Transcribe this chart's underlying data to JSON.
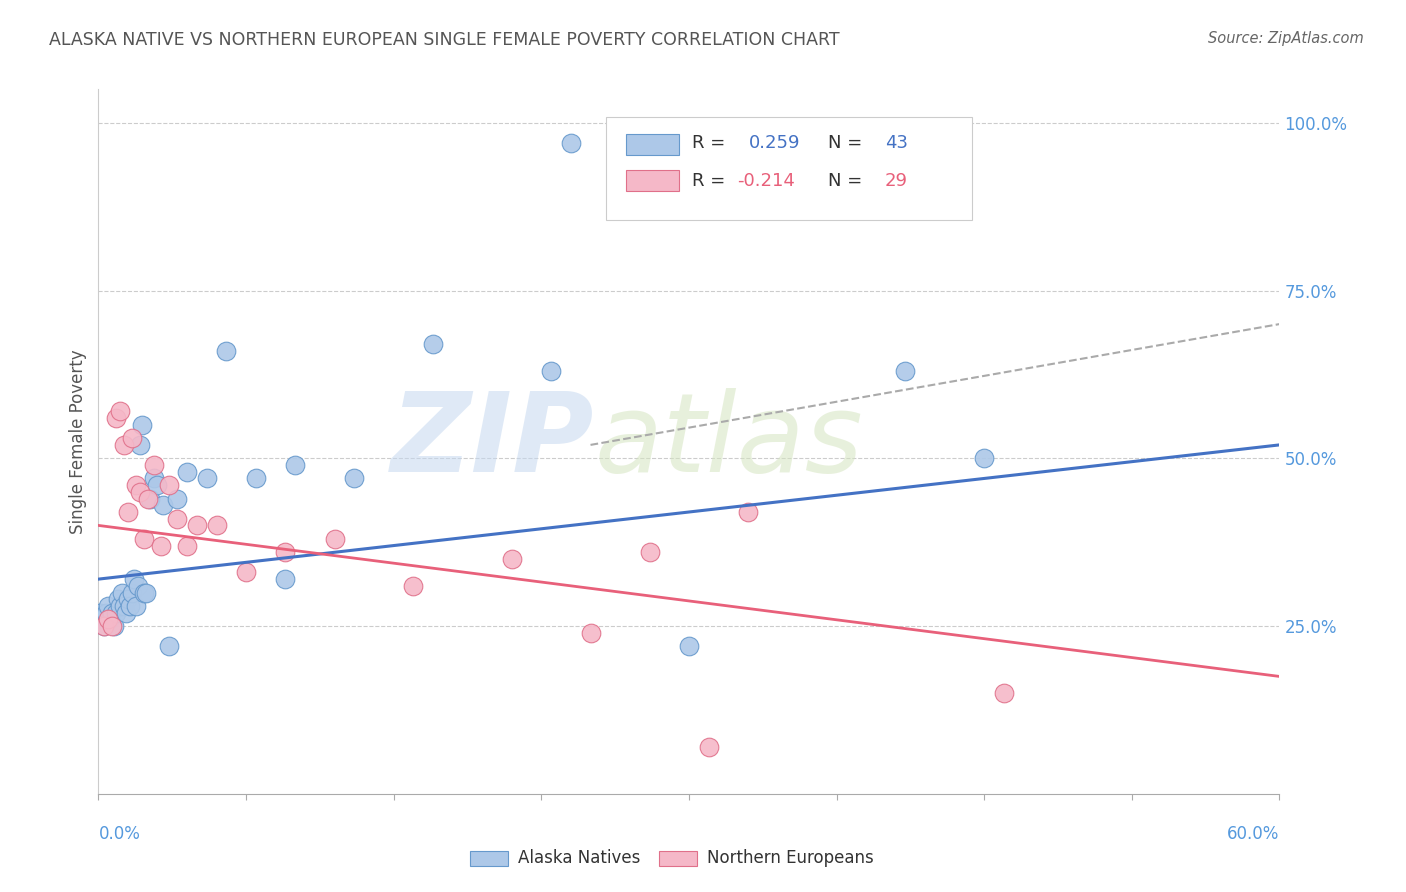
{
  "title": "ALASKA NATIVE VS NORTHERN EUROPEAN SINGLE FEMALE POVERTY CORRELATION CHART",
  "source": "Source: ZipAtlas.com",
  "ylabel": "Single Female Poverty",
  "watermark_zip": "ZIP",
  "watermark_atlas": "atlas",
  "legend_blue_text": "R =  0.259   N = 43",
  "legend_pink_text": "R = -0.214   N = 29",
  "legend_label1": "Alaska Natives",
  "legend_label2": "Northern Europeans",
  "blue_scatter_color": "#adc8e8",
  "blue_edge_color": "#6699cc",
  "pink_scatter_color": "#f5b8c8",
  "pink_edge_color": "#e0708a",
  "blue_line_color": "#4472c4",
  "pink_line_color": "#e8607a",
  "dashed_line_color": "#aaaaaa",
  "right_tick_color": "#5599dd",
  "title_color": "#555555",
  "source_color": "#666666",
  "xmin": 0.0,
  "xmax": 0.6,
  "ymin": 0.0,
  "ymax": 1.05,
  "blue_x": [
    0.001,
    0.002,
    0.003,
    0.004,
    0.005,
    0.006,
    0.007,
    0.008,
    0.009,
    0.01,
    0.011,
    0.012,
    0.013,
    0.014,
    0.015,
    0.016,
    0.017,
    0.018,
    0.019,
    0.02,
    0.021,
    0.022,
    0.023,
    0.024,
    0.026,
    0.028,
    0.03,
    0.033,
    0.036,
    0.04,
    0.045,
    0.055,
    0.065,
    0.08,
    0.1,
    0.13,
    0.17,
    0.24,
    0.3,
    0.41,
    0.45,
    0.23,
    0.095
  ],
  "blue_y": [
    0.27,
    0.26,
    0.25,
    0.27,
    0.28,
    0.26,
    0.27,
    0.25,
    0.27,
    0.29,
    0.28,
    0.3,
    0.28,
    0.27,
    0.29,
    0.28,
    0.3,
    0.32,
    0.28,
    0.31,
    0.52,
    0.55,
    0.3,
    0.3,
    0.44,
    0.47,
    0.46,
    0.43,
    0.22,
    0.44,
    0.48,
    0.47,
    0.66,
    0.47,
    0.49,
    0.47,
    0.67,
    0.97,
    0.22,
    0.63,
    0.5,
    0.63,
    0.32
  ],
  "pink_x": [
    0.003,
    0.005,
    0.007,
    0.009,
    0.011,
    0.013,
    0.015,
    0.017,
    0.019,
    0.021,
    0.023,
    0.025,
    0.028,
    0.032,
    0.036,
    0.04,
    0.045,
    0.05,
    0.06,
    0.075,
    0.095,
    0.12,
    0.16,
    0.21,
    0.25,
    0.31,
    0.33,
    0.46,
    0.28
  ],
  "pink_y": [
    0.25,
    0.26,
    0.25,
    0.56,
    0.57,
    0.52,
    0.42,
    0.53,
    0.46,
    0.45,
    0.38,
    0.44,
    0.49,
    0.37,
    0.46,
    0.41,
    0.37,
    0.4,
    0.4,
    0.33,
    0.36,
    0.38,
    0.31,
    0.35,
    0.24,
    0.07,
    0.42,
    0.15,
    0.36
  ],
  "blue_trend_x0": 0.0,
  "blue_trend_x1": 0.6,
  "blue_trend_y0": 0.32,
  "blue_trend_y1": 0.52,
  "pink_trend_x0": 0.0,
  "pink_trend_x1": 0.6,
  "pink_trend_y0": 0.4,
  "pink_trend_y1": 0.175,
  "dash_trend_x0": 0.25,
  "dash_trend_x1": 0.6,
  "dash_trend_y0": 0.52,
  "dash_trend_y1": 0.7
}
